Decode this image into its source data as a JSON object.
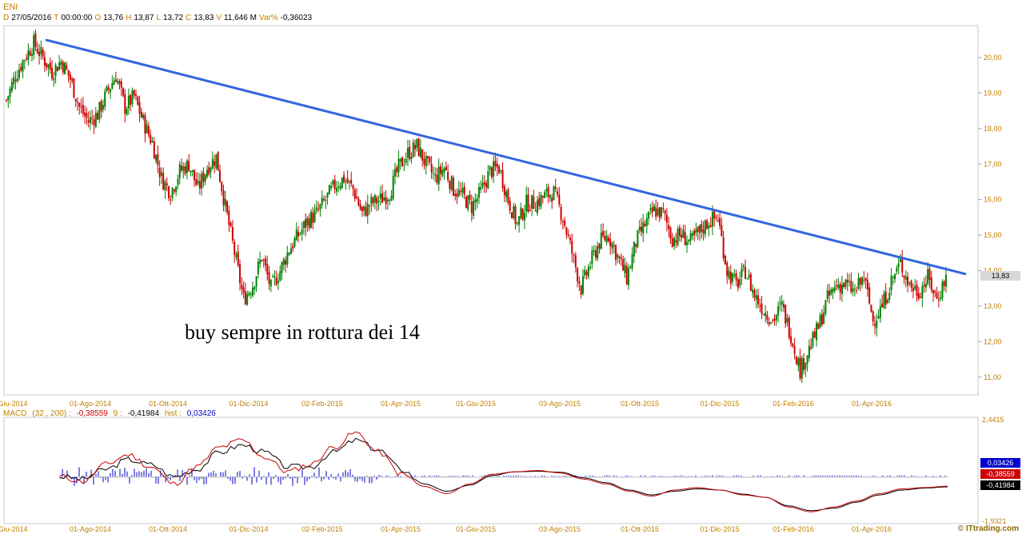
{
  "header": {
    "ticker": "ENI",
    "fields": [
      {
        "key": "D",
        "value": "27/05/2016"
      },
      {
        "key": "T",
        "value": "00:00:00"
      },
      {
        "key": "O",
        "value": "13,76"
      },
      {
        "key": "H",
        "value": "13,87"
      },
      {
        "key": "L",
        "value": "13,72"
      },
      {
        "key": "C",
        "value": "13,83"
      },
      {
        "key": "V",
        "value": "11,646 M"
      },
      {
        "key": "Var%",
        "value": "-0,36023"
      }
    ]
  },
  "annotation": "buy sempre in rottura dei 14",
  "last_price_badge": "13,83",
  "macd_header": {
    "name": "MACD",
    "params": "(32 , 200) :",
    "macd_value": "-0,38559",
    "signal_label": "9 :",
    "signal_value": "-0,41984",
    "hist_label": "hist :",
    "hist_value": "0,03426"
  },
  "macd_badges": {
    "hist": "0,03426",
    "macd": "-0,38559",
    "signal": "-0,41984"
  },
  "watermark": "© ITtrading.com",
  "colors": {
    "up": "#008000",
    "down": "#cc0000",
    "trendline": "#3366dd",
    "axis": "#c08000",
    "hist": "#0000cc"
  },
  "chart_data": [
    {
      "type": "candlestick",
      "title": "ENI",
      "x_tick_labels": [
        "Giu-2014",
        "01-Ago-2014",
        "01-Ott-2014",
        "01-Dic-2014",
        "02-Feb-2015",
        "01-Apr-2015",
        "01-Giu-2015",
        "03-Ago-2015",
        "01-Ott-2015",
        "01-Dic-2015",
        "01-Feb-2016",
        "01-Apr-2016"
      ],
      "y_ticks": [
        "11,00",
        "12,00",
        "13,00",
        "14,00",
        "15,00",
        "16,00",
        "17,00",
        "18,00",
        "19,00",
        "20,00"
      ],
      "ylim": [
        10.5,
        20.9
      ],
      "price_path_weekly_close": [
        18.8,
        19.5,
        20.0,
        20.4,
        20.0,
        19.6,
        19.9,
        19.4,
        18.6,
        18.2,
        18.4,
        19.0,
        19.5,
        18.6,
        18.9,
        18.2,
        17.6,
        16.6,
        16.2,
        16.8,
        17.0,
        16.3,
        16.9,
        17.2,
        15.8,
        14.5,
        13.2,
        13.6,
        14.4,
        13.5,
        14.0,
        14.6,
        15.0,
        15.4,
        15.6,
        16.0,
        16.4,
        16.6,
        16.3,
        15.6,
        15.9,
        16.0,
        16.2,
        16.9,
        17.3,
        17.5,
        17.0,
        16.6,
        16.9,
        16.3,
        16.1,
        15.8,
        16.2,
        16.8,
        16.9,
        16.0,
        15.3,
        15.9,
        15.9,
        16.1,
        16.2,
        15.5,
        14.5,
        13.5,
        14.2,
        14.8,
        15.0,
        14.4,
        13.8,
        14.8,
        15.3,
        15.7,
        15.6,
        14.9,
        15.0,
        14.8,
        15.1,
        15.4,
        15.5,
        14.0,
        13.6,
        14.0,
        13.3,
        12.9,
        12.6,
        13.0,
        12.2,
        11.2,
        11.8,
        12.4,
        13.2,
        13.6,
        13.6,
        13.4,
        13.8,
        12.6,
        13.0,
        13.7,
        14.2,
        13.6,
        13.4,
        13.8,
        13.2,
        13.83
      ],
      "trendline": {
        "from": {
          "x": "2014-07-03",
          "y": 20.5
        },
        "to": {
          "x": "2016-06-03",
          "y": 13.9
        }
      }
    },
    {
      "type": "line",
      "title": "MACD",
      "ylim": [
        -1.9321,
        2.4415
      ],
      "y_ticks": [
        "2,4415",
        "-1,9321"
      ],
      "series": [
        {
          "name": "MACD",
          "values": [
            0.0,
            -0.2,
            0.5,
            0.9,
            0.4,
            -0.3,
            0.4,
            1.2,
            1.5,
            0.8,
            0.2,
            0.5,
            1.2,
            1.8,
            1.0,
            0.1,
            -0.4,
            -0.7,
            -0.3,
            0.1,
            0.2,
            0.25,
            0.15,
            -0.1,
            -0.3,
            -0.6,
            -0.8,
            -0.55,
            -0.45,
            -0.55,
            -0.75,
            -0.85,
            -1.25,
            -1.45,
            -1.25,
            -1.0,
            -0.7,
            -0.5,
            -0.45,
            -0.39
          ]
        },
        {
          "name": "9",
          "values": [
            0.0,
            -0.1,
            0.3,
            0.7,
            0.5,
            0.0,
            0.3,
            1.0,
            1.3,
            1.0,
            0.4,
            0.4,
            1.0,
            1.5,
            1.1,
            0.3,
            -0.3,
            -0.6,
            -0.35,
            0.05,
            0.2,
            0.22,
            0.18,
            -0.05,
            -0.25,
            -0.55,
            -0.75,
            -0.6,
            -0.5,
            -0.55,
            -0.72,
            -0.85,
            -1.2,
            -1.4,
            -1.3,
            -1.05,
            -0.75,
            -0.55,
            -0.47,
            -0.42
          ]
        }
      ],
      "hist_value": 0.03426
    }
  ]
}
